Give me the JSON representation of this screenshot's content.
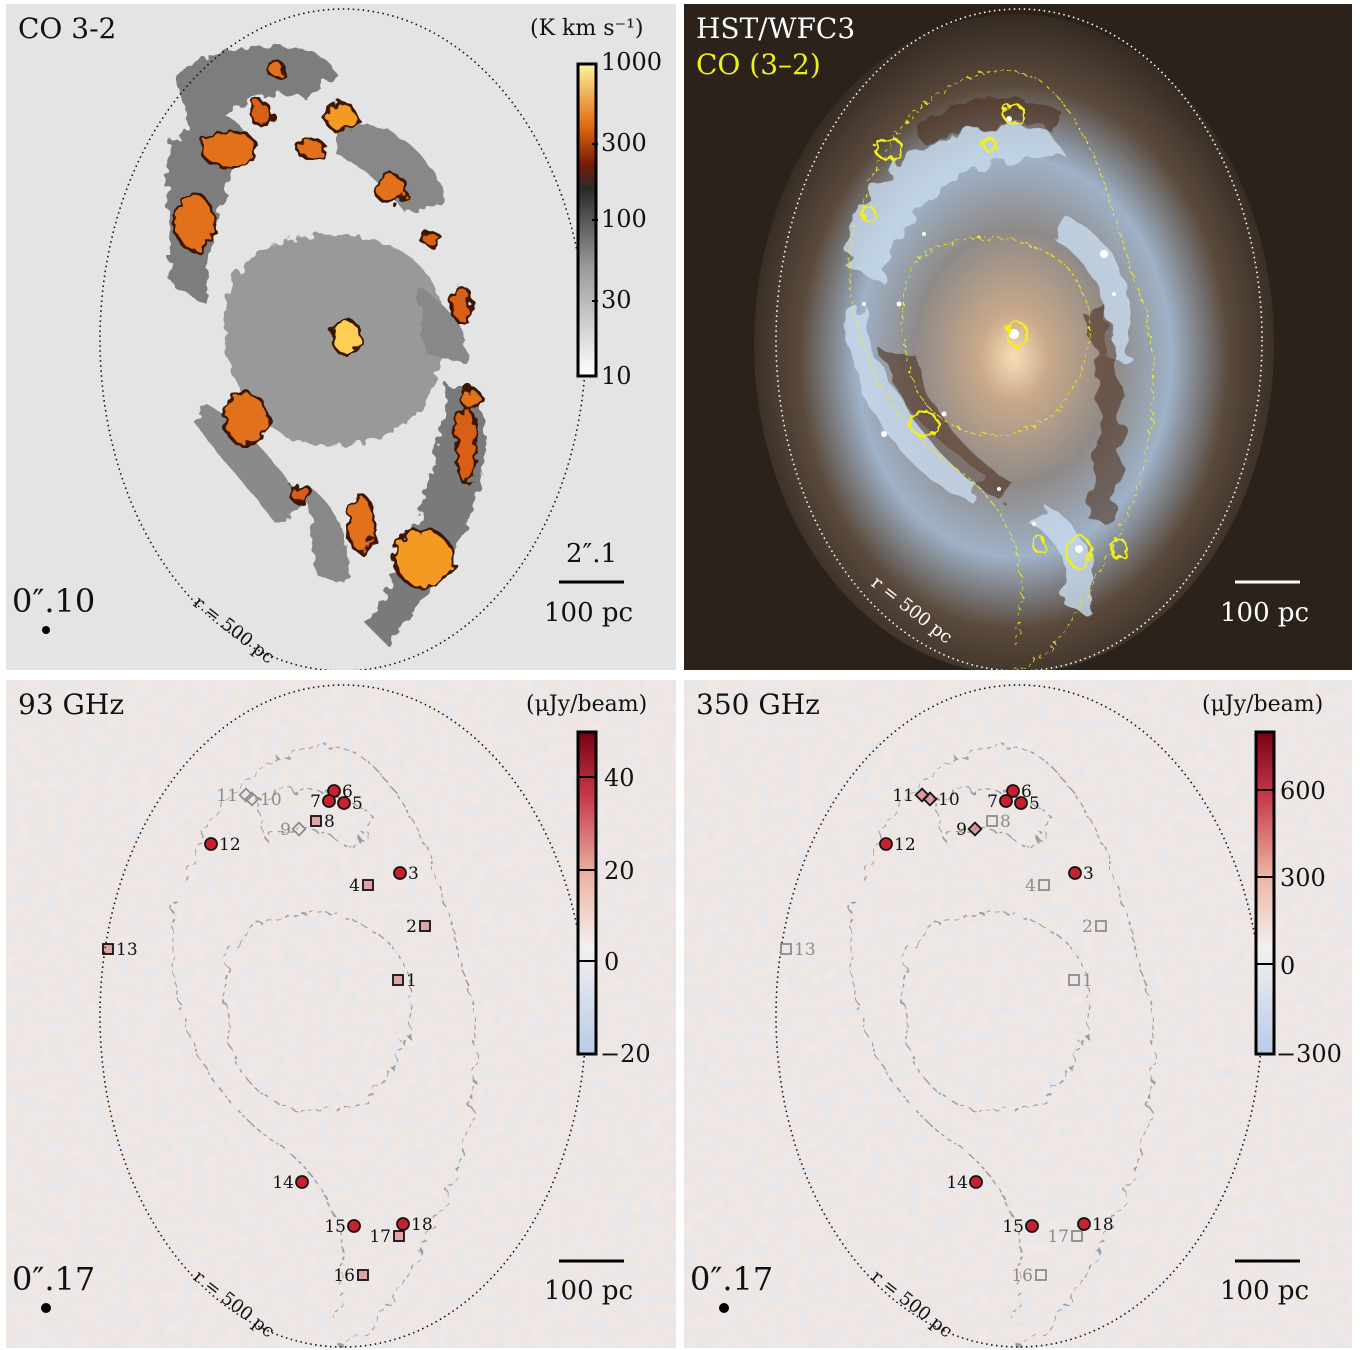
{
  "panels": {
    "co": {
      "title": "CO 3-2",
      "unit": "(K km s⁻¹)",
      "colorbar_ticks": [
        "1000",
        "300",
        "100",
        "30",
        "10"
      ],
      "ring_label": "r = 500 pc",
      "beam": "0″.10",
      "scale_arcsec": "2″.1",
      "scale_pc": "100 pc"
    },
    "hst": {
      "title": "HST/WFC3",
      "subtitle": "CO (3–2)",
      "ring_label": "r = 500 pc",
      "scale_pc": "100 pc"
    },
    "ghz93": {
      "title": "93 GHz",
      "unit": "(μJy/beam)",
      "colorbar_ticks": [
        "40",
        "20",
        "0",
        "−20"
      ],
      "ring_label": "r = 500 pc",
      "beam": "0″.17",
      "scale_pc": "100 pc"
    },
    "ghz350": {
      "title": "350 GHz",
      "unit": "(μJy/beam)",
      "colorbar_ticks": [
        "600",
        "300",
        "0",
        "−300"
      ],
      "beam": "0″.17",
      "ring_label": "r = 500 pc",
      "scale_pc": "100 pc"
    }
  },
  "sources_93": [
    {
      "id": "1",
      "marker": "square",
      "detected": true
    },
    {
      "id": "2",
      "marker": "square",
      "detected": true
    },
    {
      "id": "3",
      "marker": "circle",
      "detected": true
    },
    {
      "id": "4",
      "marker": "square",
      "detected": true
    },
    {
      "id": "5",
      "marker": "circle",
      "detected": true
    },
    {
      "id": "6",
      "marker": "circle",
      "detected": true
    },
    {
      "id": "7",
      "marker": "circle",
      "detected": true
    },
    {
      "id": "8",
      "marker": "square",
      "detected": true
    },
    {
      "id": "9",
      "marker": "diamond",
      "detected": false
    },
    {
      "id": "10",
      "marker": "diamond",
      "detected": false
    },
    {
      "id": "11",
      "marker": "diamond",
      "detected": false
    },
    {
      "id": "12",
      "marker": "circle",
      "detected": true
    },
    {
      "id": "13",
      "marker": "square",
      "detected": true
    },
    {
      "id": "14",
      "marker": "circle",
      "detected": true
    },
    {
      "id": "15",
      "marker": "circle",
      "detected": true
    },
    {
      "id": "16",
      "marker": "square",
      "detected": true
    },
    {
      "id": "17",
      "marker": "square",
      "detected": true
    },
    {
      "id": "18",
      "marker": "circle",
      "detected": true
    }
  ],
  "sources_350": [
    {
      "id": "1",
      "marker": "square",
      "detected": false
    },
    {
      "id": "2",
      "marker": "square",
      "detected": false
    },
    {
      "id": "3",
      "marker": "circle",
      "detected": true
    },
    {
      "id": "4",
      "marker": "square",
      "detected": false
    },
    {
      "id": "5",
      "marker": "circle",
      "detected": true
    },
    {
      "id": "6",
      "marker": "circle",
      "detected": true
    },
    {
      "id": "7",
      "marker": "circle",
      "detected": true
    },
    {
      "id": "8",
      "marker": "square",
      "detected": false
    },
    {
      "id": "9",
      "marker": "diamond",
      "detected": true
    },
    {
      "id": "10",
      "marker": "diamond",
      "detected": true
    },
    {
      "id": "11",
      "marker": "diamond",
      "detected": true
    },
    {
      "id": "12",
      "marker": "circle",
      "detected": true
    },
    {
      "id": "13",
      "marker": "square",
      "detected": false
    },
    {
      "id": "14",
      "marker": "circle",
      "detected": true
    },
    {
      "id": "15",
      "marker": "circle",
      "detected": true
    },
    {
      "id": "16",
      "marker": "square",
      "detected": false
    },
    {
      "id": "17",
      "marker": "square",
      "detected": false
    },
    {
      "id": "18",
      "marker": "circle",
      "detected": true
    }
  ],
  "colors": {
    "co_panel_bg": "#e4e4e4",
    "co_hot": "#f08a1a",
    "co_gray": "#8a8a8a",
    "contour_yellow": "#f1ef1a",
    "radio_red": "#b0102a",
    "radio_blue": "#b8cbe8"
  }
}
